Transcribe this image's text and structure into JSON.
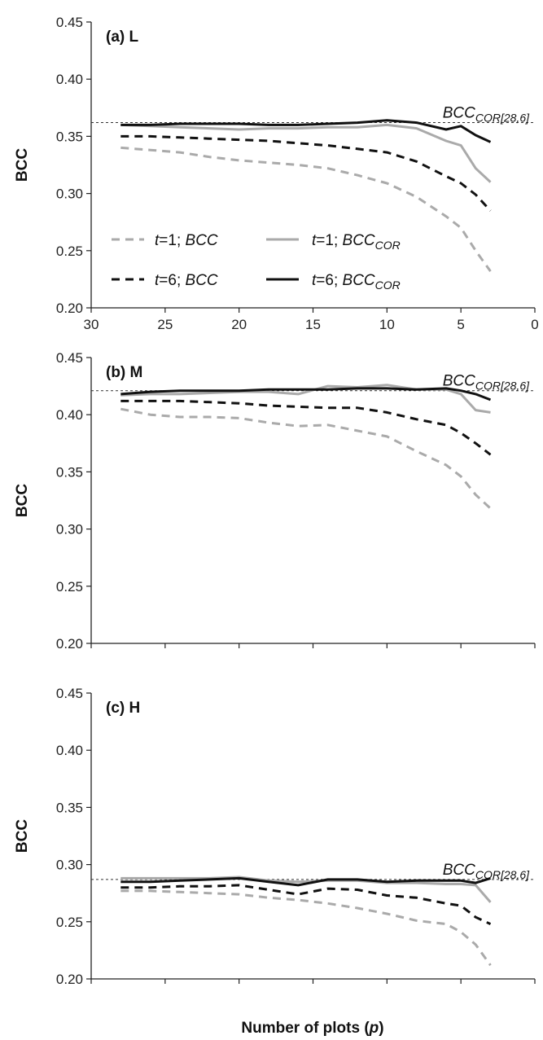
{
  "chart_data": [
    {
      "type": "line",
      "title": "(a) L",
      "ylabel": "BCC",
      "xlabel": "Number of plots (p)",
      "xlim": [
        30,
        0
      ],
      "ylim": [
        0.2,
        0.45
      ],
      "xticks": [
        "30",
        "25",
        "20",
        "15",
        "10",
        "5",
        "0"
      ],
      "yticks": [
        "0.20",
        "0.25",
        "0.30",
        "0.35",
        "0.40",
        "0.45"
      ],
      "x": [
        28,
        26,
        24,
        22,
        20,
        18,
        16,
        14,
        12,
        10,
        8,
        6,
        5,
        4,
        3
      ],
      "reference_line": {
        "label": "BCC",
        "label_sub": "COR[28,6]",
        "value": 0.362
      },
      "legend": [
        {
          "prefix": "t",
          "text": "=1; ",
          "italic": "BCC",
          "sub": ""
        },
        {
          "prefix": "t",
          "text": "=1; ",
          "italic": "BCC",
          "sub": "COR"
        },
        {
          "prefix": "t",
          "text": "=6; ",
          "italic": "BCC",
          "sub": ""
        },
        {
          "prefix": "t",
          "text": "=6; ",
          "italic": "BCC",
          "sub": "COR"
        }
      ],
      "series": [
        {
          "name": "t=1; BCC",
          "color": "#aaaaaa",
          "dash": true,
          "values": [
            0.34,
            0.338,
            0.336,
            0.332,
            0.329,
            0.327,
            0.325,
            0.322,
            0.316,
            0.309,
            0.297,
            0.28,
            0.27,
            0.25,
            0.232
          ]
        },
        {
          "name": "t=1; BCCCOR",
          "color": "#aaaaaa",
          "dash": false,
          "values": [
            0.36,
            0.359,
            0.358,
            0.357,
            0.356,
            0.357,
            0.357,
            0.358,
            0.358,
            0.36,
            0.357,
            0.346,
            0.342,
            0.322,
            0.31
          ]
        },
        {
          "name": "t=6; BCC",
          "color": "#111111",
          "dash": true,
          "values": [
            0.35,
            0.35,
            0.349,
            0.348,
            0.347,
            0.346,
            0.344,
            0.342,
            0.339,
            0.336,
            0.328,
            0.315,
            0.309,
            0.299,
            0.285
          ]
        },
        {
          "name": "t=6; BCCCOR",
          "color": "#111111",
          "dash": false,
          "values": [
            0.36,
            0.36,
            0.361,
            0.361,
            0.361,
            0.36,
            0.36,
            0.361,
            0.362,
            0.364,
            0.362,
            0.356,
            0.359,
            0.351,
            0.345
          ]
        }
      ]
    },
    {
      "type": "line",
      "title": "(b) M",
      "ylabel": "BCC",
      "xlim": [
        30,
        0
      ],
      "ylim": [
        0.2,
        0.45
      ],
      "xticks": [],
      "yticks": [
        "0.20",
        "0.25",
        "0.30",
        "0.35",
        "0.40",
        "0.45"
      ],
      "x": [
        28,
        26,
        24,
        22,
        20,
        18,
        16,
        14,
        12,
        10,
        8,
        6,
        5,
        4,
        3
      ],
      "reference_line": {
        "label": "BCC",
        "label_sub": "COR[28,6]",
        "value": 0.421
      },
      "series": [
        {
          "name": "t=1; BCC",
          "color": "#aaaaaa",
          "dash": true,
          "values": [
            0.405,
            0.4,
            0.398,
            0.398,
            0.397,
            0.393,
            0.39,
            0.391,
            0.386,
            0.381,
            0.368,
            0.356,
            0.346,
            0.33,
            0.318
          ]
        },
        {
          "name": "t=1; BCCCOR",
          "color": "#aaaaaa",
          "dash": false,
          "values": [
            0.417,
            0.418,
            0.418,
            0.419,
            0.42,
            0.42,
            0.418,
            0.425,
            0.424,
            0.426,
            0.422,
            0.422,
            0.418,
            0.404,
            0.402
          ]
        },
        {
          "name": "t=6; BCC",
          "color": "#111111",
          "dash": true,
          "values": [
            0.412,
            0.412,
            0.412,
            0.411,
            0.41,
            0.408,
            0.407,
            0.406,
            0.406,
            0.402,
            0.396,
            0.391,
            0.384,
            0.375,
            0.365
          ]
        },
        {
          "name": "t=6; BCCCOR",
          "color": "#111111",
          "dash": false,
          "values": [
            0.418,
            0.42,
            0.421,
            0.421,
            0.421,
            0.422,
            0.422,
            0.422,
            0.423,
            0.423,
            0.422,
            0.423,
            0.421,
            0.418,
            0.413
          ]
        }
      ]
    },
    {
      "type": "line",
      "title": "(c) H",
      "ylabel": "BCC",
      "xlim": [
        30,
        0
      ],
      "ylim": [
        0.2,
        0.45
      ],
      "xticks": [],
      "yticks": [
        "0.20",
        "0.25",
        "0.30",
        "0.35",
        "0.40",
        "0.45"
      ],
      "x": [
        28,
        26,
        24,
        22,
        20,
        18,
        16,
        14,
        12,
        10,
        8,
        6,
        5,
        4,
        3
      ],
      "reference_line": {
        "label": "BCC",
        "label_sub": "COR[28,6]",
        "value": 0.287
      },
      "series": [
        {
          "name": "t=1; BCC",
          "color": "#aaaaaa",
          "dash": true,
          "values": [
            0.277,
            0.277,
            0.276,
            0.275,
            0.274,
            0.271,
            0.269,
            0.266,
            0.262,
            0.257,
            0.251,
            0.248,
            0.241,
            0.23,
            0.212
          ]
        },
        {
          "name": "t=1; BCCCOR",
          "color": "#aaaaaa",
          "dash": false,
          "values": [
            0.288,
            0.288,
            0.288,
            0.288,
            0.289,
            0.286,
            0.285,
            0.286,
            0.286,
            0.284,
            0.284,
            0.283,
            0.283,
            0.282,
            0.267
          ]
        },
        {
          "name": "t=6; BCC",
          "color": "#111111",
          "dash": true,
          "values": [
            0.28,
            0.28,
            0.281,
            0.281,
            0.282,
            0.278,
            0.274,
            0.279,
            0.278,
            0.273,
            0.271,
            0.266,
            0.264,
            0.254,
            0.248
          ]
        },
        {
          "name": "t=6; BCCCOR",
          "color": "#111111",
          "dash": false,
          "values": [
            0.285,
            0.285,
            0.286,
            0.287,
            0.288,
            0.285,
            0.282,
            0.287,
            0.287,
            0.285,
            0.286,
            0.286,
            0.286,
            0.284,
            0.288
          ]
        }
      ]
    }
  ]
}
